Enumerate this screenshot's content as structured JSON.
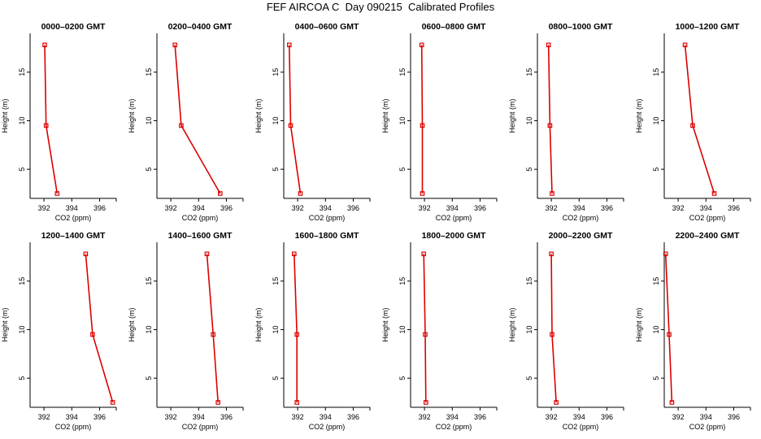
{
  "page": {
    "title": "FEF AIRCOA C  Day 090215  Calibrated Profiles"
  },
  "style": {
    "line_color": "#dd0000",
    "axis_color": "#000000"
  },
  "shared_axes": {
    "xlabel": "CO2 (ppm)",
    "ylabel": "Height (m)",
    "xlim": [
      391,
      397.2
    ],
    "ylim": [
      2,
      19
    ],
    "xticks": [
      392,
      394,
      396
    ],
    "yticks": [
      5,
      10,
      15
    ]
  },
  "chart_data": [
    {
      "type": "line",
      "title": "0000–0200 GMT",
      "xlabel": "CO2 (ppm)",
      "ylabel": "Height (m)",
      "points": [
        {
          "x": 392.05,
          "y": 17.8
        },
        {
          "x": 392.15,
          "y": 9.5
        },
        {
          "x": 392.95,
          "y": 2.5
        }
      ]
    },
    {
      "type": "line",
      "title": "0200–0400 GMT",
      "xlabel": "CO2 (ppm)",
      "ylabel": "Height (m)",
      "points": [
        {
          "x": 392.3,
          "y": 17.8
        },
        {
          "x": 392.75,
          "y": 9.5
        },
        {
          "x": 395.55,
          "y": 2.5
        }
      ]
    },
    {
      "type": "line",
      "title": "0400–0600 GMT",
      "xlabel": "CO2 (ppm)",
      "ylabel": "Height (m)",
      "points": [
        {
          "x": 391.4,
          "y": 17.8
        },
        {
          "x": 391.5,
          "y": 9.5
        },
        {
          "x": 392.2,
          "y": 2.5
        }
      ]
    },
    {
      "type": "line",
      "title": "0600–0800 GMT",
      "xlabel": "CO2 (ppm)",
      "ylabel": "Height (m)",
      "points": [
        {
          "x": 391.8,
          "y": 17.8
        },
        {
          "x": 391.85,
          "y": 9.5
        },
        {
          "x": 391.85,
          "y": 2.5
        }
      ]
    },
    {
      "type": "line",
      "title": "0800–1000 GMT",
      "xlabel": "CO2 (ppm)",
      "ylabel": "Height (m)",
      "points": [
        {
          "x": 391.8,
          "y": 17.8
        },
        {
          "x": 391.9,
          "y": 9.5
        },
        {
          "x": 392.05,
          "y": 2.5
        }
      ]
    },
    {
      "type": "line",
      "title": "1000–1200 GMT",
      "xlabel": "CO2 (ppm)",
      "ylabel": "Height (m)",
      "points": [
        {
          "x": 392.5,
          "y": 17.8
        },
        {
          "x": 393.05,
          "y": 9.5
        },
        {
          "x": 394.6,
          "y": 2.5
        }
      ]
    },
    {
      "type": "line",
      "title": "1200–1400 GMT",
      "xlabel": "CO2 (ppm)",
      "ylabel": "Height (m)",
      "points": [
        {
          "x": 395.0,
          "y": 17.8
        },
        {
          "x": 395.5,
          "y": 9.5
        },
        {
          "x": 396.95,
          "y": 2.5
        }
      ]
    },
    {
      "type": "line",
      "title": "1400–1600 GMT",
      "xlabel": "CO2 (ppm)",
      "ylabel": "Height (m)",
      "points": [
        {
          "x": 394.6,
          "y": 17.8
        },
        {
          "x": 395.05,
          "y": 9.5
        },
        {
          "x": 395.4,
          "y": 2.5
        }
      ]
    },
    {
      "type": "line",
      "title": "1600–1800 GMT",
      "xlabel": "CO2 (ppm)",
      "ylabel": "Height (m)",
      "points": [
        {
          "x": 391.75,
          "y": 17.8
        },
        {
          "x": 391.95,
          "y": 9.5
        },
        {
          "x": 391.95,
          "y": 2.5
        }
      ]
    },
    {
      "type": "line",
      "title": "1800–2000 GMT",
      "xlabel": "CO2 (ppm)",
      "ylabel": "Height (m)",
      "points": [
        {
          "x": 391.95,
          "y": 17.8
        },
        {
          "x": 392.05,
          "y": 9.5
        },
        {
          "x": 392.1,
          "y": 2.5
        }
      ]
    },
    {
      "type": "line",
      "title": "2000–2200 GMT",
      "xlabel": "CO2 (ppm)",
      "ylabel": "Height (m)",
      "points": [
        {
          "x": 392.0,
          "y": 17.8
        },
        {
          "x": 392.05,
          "y": 9.5
        },
        {
          "x": 392.35,
          "y": 2.5
        }
      ]
    },
    {
      "type": "line",
      "title": "2200–2400 GMT",
      "xlabel": "CO2 (ppm)",
      "ylabel": "Height (m)",
      "points": [
        {
          "x": 391.1,
          "y": 17.8
        },
        {
          "x": 391.35,
          "y": 9.5
        },
        {
          "x": 391.55,
          "y": 2.5
        }
      ]
    }
  ]
}
